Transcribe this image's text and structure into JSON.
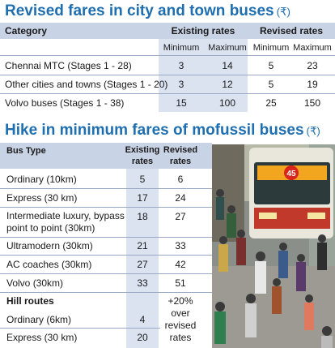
{
  "table1": {
    "title": "Revised fares in city and town buses",
    "currency_symbol": "(₹)",
    "headers": {
      "category": "Category",
      "existing": "Existing rates",
      "revised": "Revised rates",
      "min": "Minimum",
      "max": "Maximum",
      "min2": "Minimum",
      "max2": "Maximum"
    },
    "rows": [
      {
        "category": "Chennai MTC (Stages 1 - 28)",
        "ex_min": "3",
        "ex_max": "14",
        "rev_min": "5",
        "rev_max": "23"
      },
      {
        "category": "Other cities and towns (Stages 1 - 20)",
        "ex_min": "3",
        "ex_max": "12",
        "rev_min": "5",
        "rev_max": "19"
      },
      {
        "category": "Volvo buses (Stages 1 - 38)",
        "ex_min": "15",
        "ex_max": "100",
        "rev_min": "25",
        "rev_max": "150"
      }
    ]
  },
  "table2": {
    "title": "Hike in minimum fares of mofussil buses",
    "currency_symbol": "(₹)",
    "headers": {
      "bus_type": "Bus Type",
      "existing_line1": "Existing",
      "existing_line2": "rates",
      "revised_line1": "Revised",
      "revised_line2": "rates"
    },
    "rows": [
      {
        "type": "Ordinary (10km)",
        "existing": "5",
        "revised": "6"
      },
      {
        "type": "Express (30 km)",
        "existing": "17",
        "revised": "24"
      },
      {
        "type_line1": "Intermediate luxury, bypass",
        "type_line2": "point to point (30km)",
        "existing": "18",
        "revised": "27"
      },
      {
        "type": "Ultramodern (30km)",
        "existing": "21",
        "revised": "33"
      },
      {
        "type": "AC coaches (30km)",
        "existing": "27",
        "revised": "42"
      },
      {
        "type": "Volvo (30km)",
        "existing": "33",
        "revised": "51"
      }
    ],
    "hill_routes": {
      "label": "Hill routes",
      "note_line1": "+20%",
      "note_line2": "over",
      "note_line3": "revised",
      "note_line4": "rates",
      "rows": [
        {
          "type": "Ordinary (6km)",
          "existing": "4"
        },
        {
          "type": "Express (30 km)",
          "existing": "20"
        }
      ]
    }
  },
  "photo": {
    "bus_route_number": "45"
  }
}
